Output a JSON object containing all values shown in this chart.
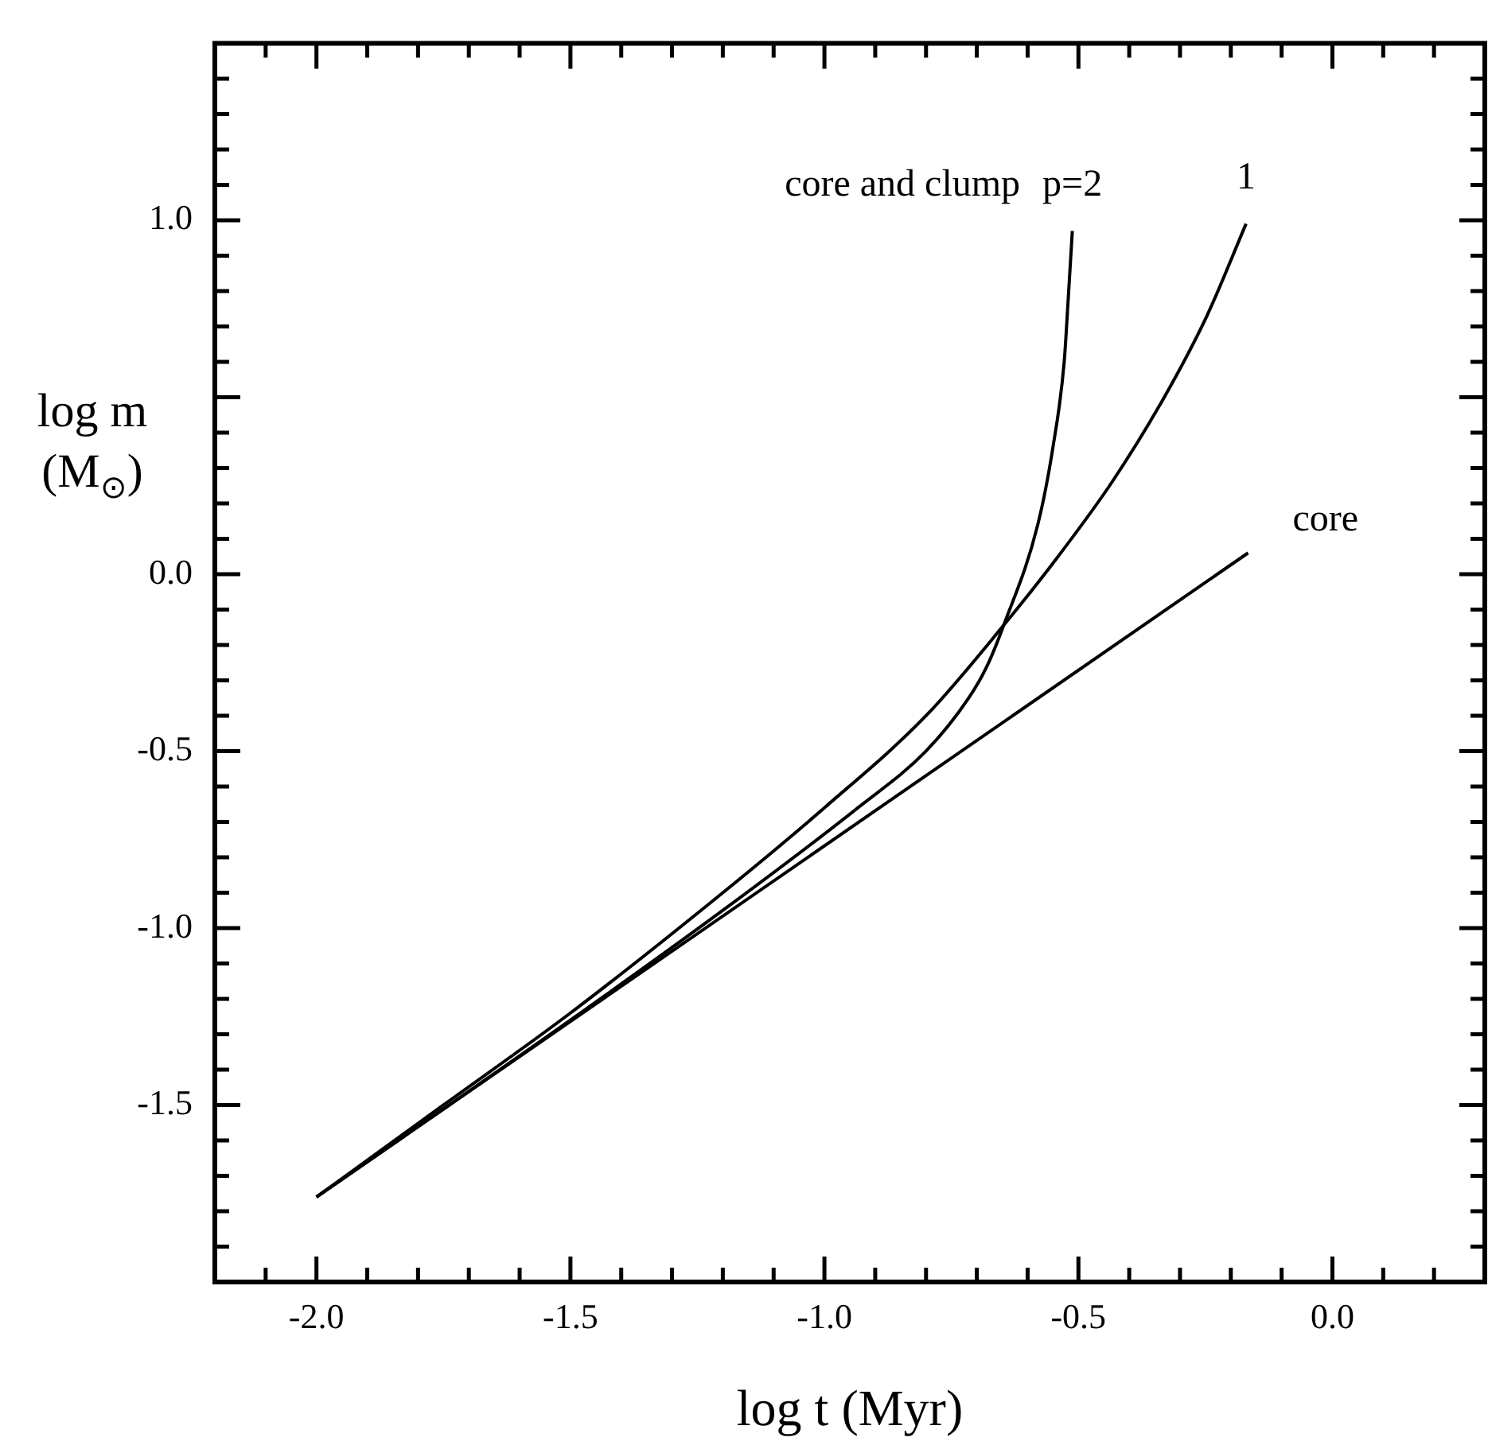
{
  "chart_data": {
    "type": "line",
    "xlabel": "log t (Myr)",
    "ylabel": "log m (M$_{⊙}$)",
    "xlim": [
      -2.2,
      0.3
    ],
    "ylim": [
      -2.0,
      1.5
    ],
    "xticks": [
      {
        "value": -2.1,
        "label": null
      },
      {
        "value": -2.0,
        "label": "-2.0"
      },
      {
        "value": -1.9,
        "label": null
      },
      {
        "value": -1.8,
        "label": null
      },
      {
        "value": -1.7,
        "label": null
      },
      {
        "value": -1.6,
        "label": null
      },
      {
        "value": -1.5,
        "label": "-1.5"
      },
      {
        "value": -1.4,
        "label": null
      },
      {
        "value": -1.3,
        "label": null
      },
      {
        "value": -1.2,
        "label": null
      },
      {
        "value": -1.1,
        "label": null
      },
      {
        "value": -1.0,
        "label": "-1.0"
      },
      {
        "value": -0.9,
        "label": null
      },
      {
        "value": -0.8,
        "label": null
      },
      {
        "value": -0.7,
        "label": null
      },
      {
        "value": -0.6,
        "label": null
      },
      {
        "value": -0.5,
        "label": "-0.5"
      },
      {
        "value": -0.4,
        "label": null
      },
      {
        "value": -0.3,
        "label": null
      },
      {
        "value": -0.2,
        "label": null
      },
      {
        "value": -0.1,
        "label": null
      },
      {
        "value": 0.0,
        "label": "0.0"
      },
      {
        "value": 0.1,
        "label": null
      },
      {
        "value": 0.2,
        "label": null
      }
    ],
    "yticks": [
      {
        "value": -1.9,
        "label": null
      },
      {
        "value": -1.8,
        "label": null
      },
      {
        "value": -1.7,
        "label": null
      },
      {
        "value": -1.6,
        "label": null
      },
      {
        "value": -1.5,
        "label": "-1.5"
      },
      {
        "value": -1.4,
        "label": null
      },
      {
        "value": -1.3,
        "label": null
      },
      {
        "value": -1.2,
        "label": null
      },
      {
        "value": -1.1,
        "label": null
      },
      {
        "value": -1.0,
        "label": "-1.0"
      },
      {
        "value": -0.9,
        "label": null
      },
      {
        "value": -0.8,
        "label": null
      },
      {
        "value": -0.7,
        "label": null
      },
      {
        "value": -0.6,
        "label": null
      },
      {
        "value": -0.5,
        "label": "-0.5"
      },
      {
        "value": -0.4,
        "label": null
      },
      {
        "value": -0.3,
        "label": null
      },
      {
        "value": -0.2,
        "label": null
      },
      {
        "value": -0.1,
        "label": null
      },
      {
        "value": 0.0,
        "label": "0.0"
      },
      {
        "value": 0.1,
        "label": null
      },
      {
        "value": 0.2,
        "label": null
      },
      {
        "value": 0.3,
        "label": null
      },
      {
        "value": 0.4,
        "label": null
      },
      {
        "value": 0.5,
        "label": null
      },
      {
        "value": 0.6,
        "label": null
      },
      {
        "value": 0.7,
        "label": null
      },
      {
        "value": 0.8,
        "label": null
      },
      {
        "value": 0.9,
        "label": null
      },
      {
        "value": 1.0,
        "label": "1.0"
      },
      {
        "value": 1.1,
        "label": null
      },
      {
        "value": 1.2,
        "label": null
      },
      {
        "value": 1.3,
        "label": null
      },
      {
        "value": 1.4,
        "label": null
      }
    ],
    "grid": false,
    "legend": false,
    "marker": "none",
    "line_style": "solid",
    "annotations": [
      "core and clump"
    ],
    "series": [
      {
        "name": "p=2",
        "color": "#000000",
        "x": [
          -2.0,
          -1.5,
          -1.2,
          -0.934,
          -0.8,
          -0.716,
          -0.68,
          -0.647,
          -0.58,
          -0.55,
          -0.528,
          -0.52,
          -0.512
        ],
        "values": [
          -1.76,
          -1.26,
          -0.95,
          -0.66,
          -0.5,
          -0.35,
          -0.26,
          -0.144,
          0.14,
          0.36,
          0.6,
          0.78,
          0.97
        ]
      },
      {
        "name": "1",
        "color": "#000000",
        "x": [
          -2.0,
          -1.75,
          -1.5,
          -1.2,
          -1.0,
          -0.8,
          -0.647,
          -0.54,
          -0.434,
          -0.331,
          -0.247,
          -0.17
        ],
        "values": [
          -1.76,
          -1.5,
          -1.24,
          -0.9,
          -0.66,
          -0.4,
          -0.144,
          0.05,
          0.26,
          0.5,
          0.73,
          0.99
        ]
      },
      {
        "name": "core",
        "color": "#000000",
        "x": [
          -2.0,
          -0.166
        ],
        "values": [
          -1.76,
          0.06
        ]
      }
    ]
  }
}
